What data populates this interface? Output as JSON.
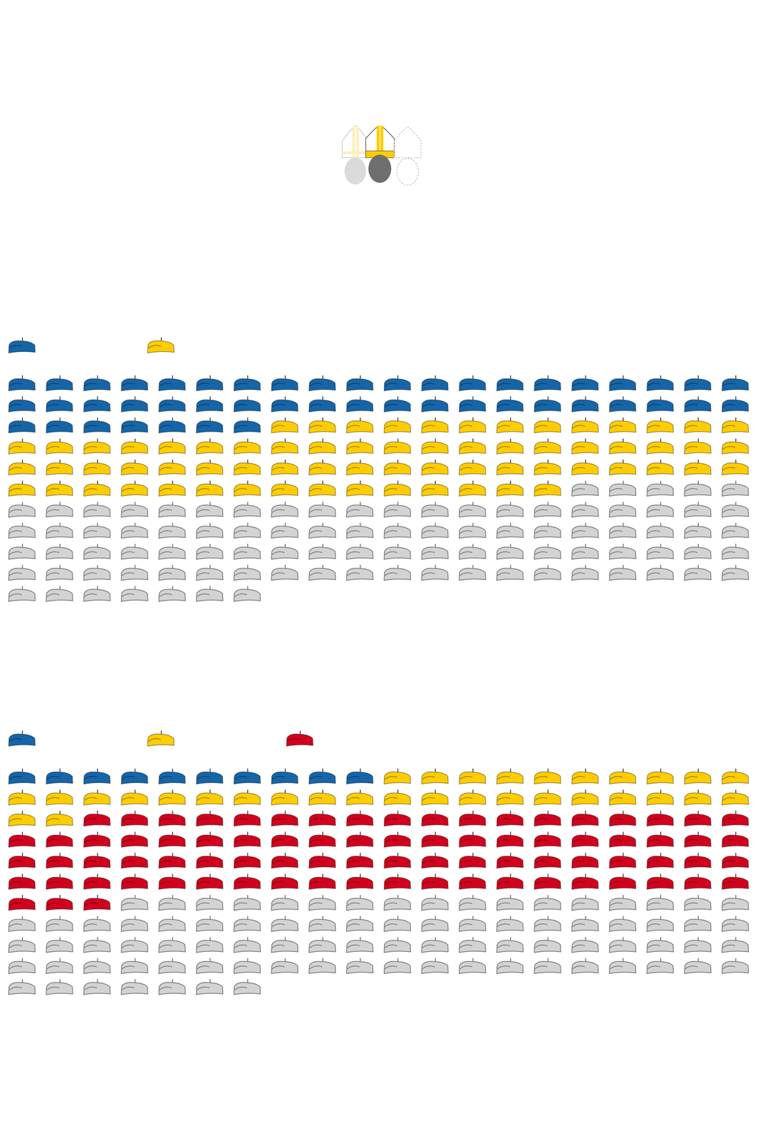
{
  "chart_data": [
    {
      "type": "waffle",
      "values": [
        47,
        68,
        92
      ],
      "colors": [
        "#1565a8",
        "#fecd00",
        "#d3d3d3"
      ],
      "legend": "top left",
      "tick_labels": false,
      "grid": false
    },
    {
      "type": "waffle",
      "values": [
        10,
        32,
        81,
        84
      ],
      "colors": [
        "#1565a8",
        "#fecd00",
        "#d1021d",
        "#d3d3d3"
      ],
      "legend": "top left",
      "tick_labels": false,
      "grid": false
    }
  ]
}
